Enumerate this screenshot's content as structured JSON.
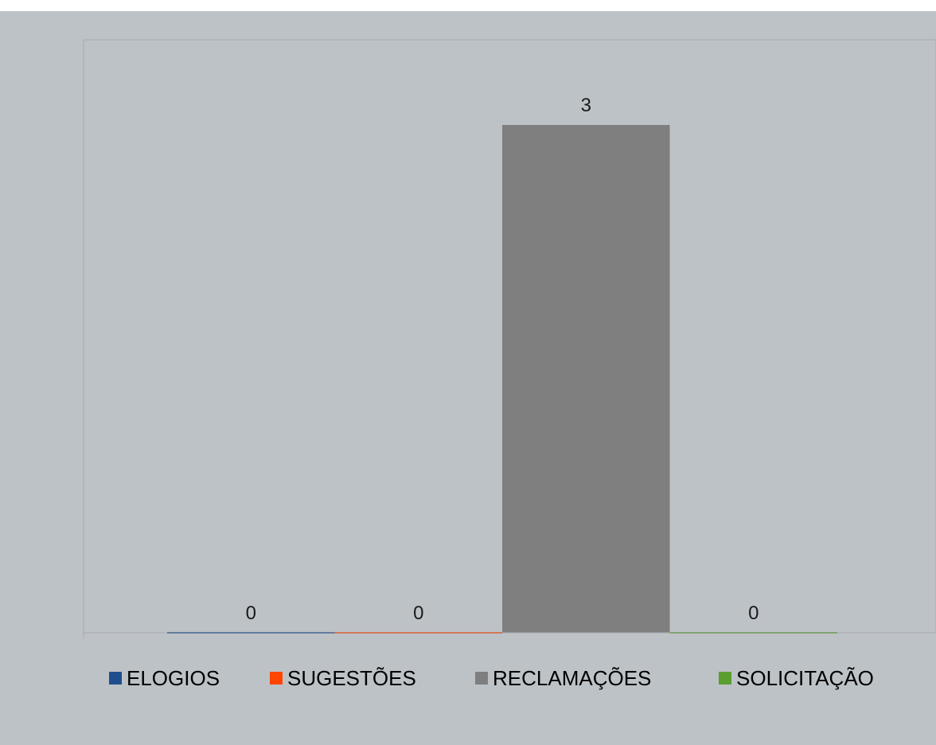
{
  "chart_data": {
    "type": "bar",
    "categories": [
      "ELOGIOS",
      "SUGESTÕES",
      "RECLAMAÇÕES",
      "SOLICITAÇÃO"
    ],
    "values": [
      0,
      0,
      3,
      0
    ],
    "colors": [
      "#1f4e8c",
      "#ff4500",
      "#7f7f7f",
      "#5a9e2f"
    ],
    "data_labels": [
      "0",
      "0",
      "3",
      "0"
    ],
    "title": "",
    "xlabel": "",
    "ylabel": "",
    "ylim": [
      0,
      3
    ],
    "grid": false,
    "legend": {
      "position": "bottom",
      "entries": [
        "ELOGIOS",
        "SUGESTÕES",
        "RECLAMAÇÕES",
        "SOLICITAÇÃO"
      ]
    },
    "background_color": "#bdc2c7"
  }
}
